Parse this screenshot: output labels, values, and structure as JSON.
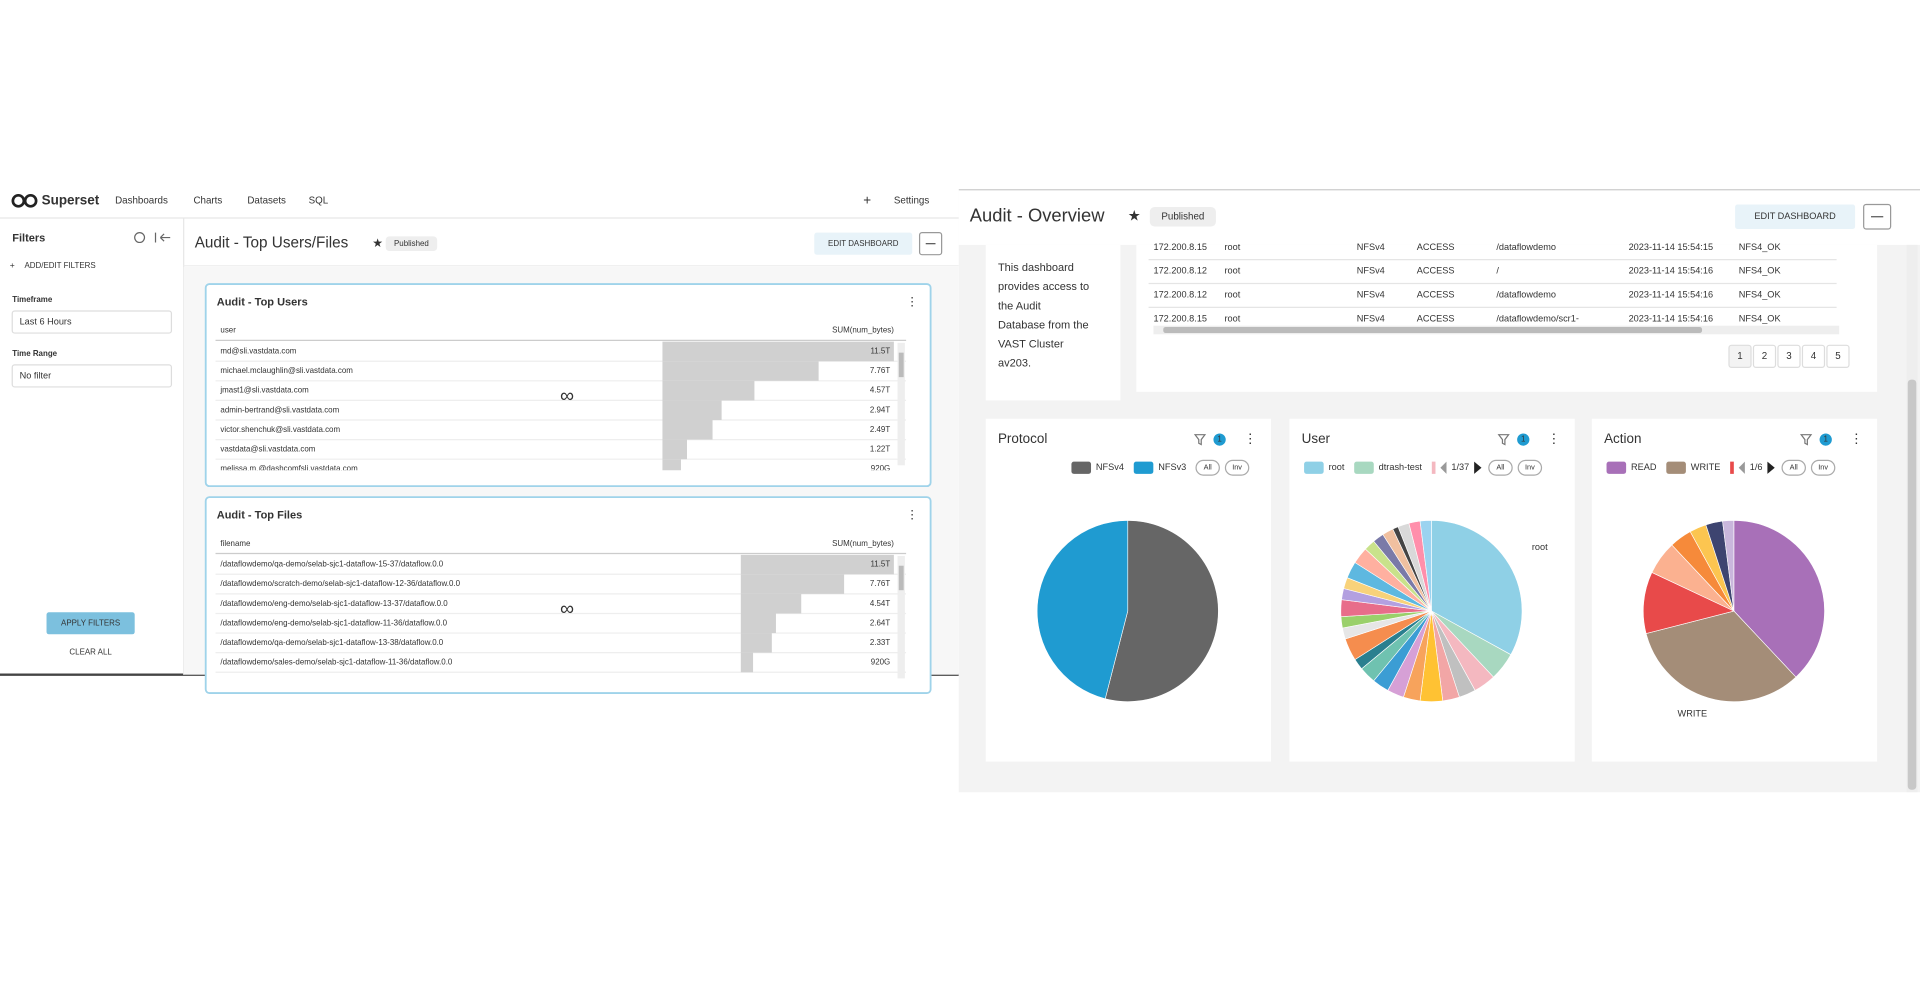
{
  "left": {
    "brand": "Superset",
    "nav": [
      "Dashboards",
      "Charts",
      "Datasets",
      "SQL"
    ],
    "nav_right": [
      "+",
      "Settings"
    ],
    "filters": {
      "title": "Filters",
      "add": "ADD/EDIT FILTERS",
      "fields": [
        {
          "label": "Timeframe",
          "value": "Last 6 Hours"
        },
        {
          "label": "Time Range",
          "value": "No filter"
        }
      ],
      "apply": "APPLY FILTERS",
      "clear": "CLEAR ALL"
    },
    "title": "Audit - Top Users/Files",
    "badge": "Published",
    "edit": "EDIT DASHBOARD",
    "tables": [
      {
        "title": "Audit - Top Users",
        "columns": [
          "user",
          "SUM(num_bytes)"
        ],
        "rows": [
          {
            "name": "md@sli.vastdata.com",
            "value": 11.5,
            "label": "11.5T"
          },
          {
            "name": "michael.mclaughlin@sli.vastdata.com",
            "value": 7.76,
            "label": "7.76T"
          },
          {
            "name": "jmast1@sli.vastdata.com",
            "value": 4.57,
            "label": "4.57T"
          },
          {
            "name": "admin-bertrand@sli.vastdata.com",
            "value": 2.94,
            "label": "2.94T"
          },
          {
            "name": "victor.shenchuk@sli.vastdata.com",
            "value": 2.49,
            "label": "2.49T"
          },
          {
            "name": "vastdata@sli.vastdata.com",
            "value": 1.22,
            "label": "1.22T"
          },
          {
            "name": "melissa.m.@dashcomfsli.vastdata.com",
            "value": 0.92,
            "label": "920G"
          }
        ]
      },
      {
        "title": "Audit - Top Files",
        "columns": [
          "filename",
          "SUM(num_bytes)"
        ],
        "rows": [
          {
            "name": "/dataflowdemo/qa-demo/selab-sjc1-dataflow-15-37/dataflow.0.0",
            "value": 11.5,
            "label": "11.5T"
          },
          {
            "name": "/dataflowdemo/scratch-demo/selab-sjc1-dataflow-12-36/dataflow.0.0",
            "value": 7.76,
            "label": "7.76T"
          },
          {
            "name": "/dataflowdemo/eng-demo/selab-sjc1-dataflow-13-37/dataflow.0.0",
            "value": 4.54,
            "label": "4.54T"
          },
          {
            "name": "/dataflowdemo/eng-demo/selab-sjc1-dataflow-11-36/dataflow.0.0",
            "value": 2.64,
            "label": "2.64T"
          },
          {
            "name": "/dataflowdemo/qa-demo/selab-sjc1-dataflow-13-38/dataflow.0.0",
            "value": 2.33,
            "label": "2.33T"
          },
          {
            "name": "/dataflowdemo/sales-demo/selab-sjc1-dataflow-11-36/dataflow.0.0",
            "value": 0.92,
            "label": "920G"
          }
        ]
      }
    ]
  },
  "right": {
    "title": "Audit - Overview",
    "badge": "Published",
    "edit": "EDIT DASHBOARD",
    "description": [
      "This dashboard",
      "provides access to",
      "the Audit",
      "Database from the",
      "VAST Cluster",
      "av203."
    ],
    "log_rows": [
      [
        "172.200.8.15",
        "root",
        "NFSv4",
        "ACCESS",
        "/dataflowdemo",
        "2023-11-14 15:54:15",
        "NFS4_OK"
      ],
      [
        "172.200.8.12",
        "root",
        "NFSv4",
        "ACCESS",
        "/",
        "2023-11-14 15:54:16",
        "NFS4_OK"
      ],
      [
        "172.200.8.12",
        "root",
        "NFSv4",
        "ACCESS",
        "/dataflowdemo",
        "2023-11-14 15:54:16",
        "NFS4_OK"
      ],
      [
        "172.200.8.15",
        "root",
        "NFSv4",
        "ACCESS",
        "/dataflowdemo/scr1-",
        "2023-11-14 15:54:16",
        "NFS4_OK"
      ]
    ],
    "pages": [
      1,
      2,
      3,
      4,
      5
    ],
    "charts": [
      {
        "type": "pie",
        "title": "Protocol",
        "filter_count": 1,
        "buttons": [
          "All",
          "Inv"
        ],
        "slices": [
          {
            "name": "NFSv4",
            "value": 54,
            "color": "#666666"
          },
          {
            "name": "NFSv3",
            "value": 46,
            "color": "#1f9bd1"
          }
        ]
      },
      {
        "type": "pie",
        "title": "User",
        "filter_count": 1,
        "pager": "1/37",
        "buttons": [
          "All",
          "Inv"
        ],
        "slice_label": "root",
        "slices": [
          {
            "name": "root",
            "value": 33,
            "color": "#8fd0e6"
          },
          {
            "name": "dtrash-test",
            "value": 5,
            "color": "#a8d8c0"
          },
          {
            "value": 4,
            "color": "#f4b8c0"
          },
          {
            "value": 3,
            "color": "#c0c0c0"
          },
          {
            "value": 3,
            "color": "#f2a6a6"
          },
          {
            "value": 4,
            "color": "#ffc233"
          },
          {
            "value": 3,
            "color": "#f7a35c"
          },
          {
            "value": 3,
            "color": "#d6a0d6"
          },
          {
            "value": 3,
            "color": "#3b9dd4"
          },
          {
            "value": 3,
            "color": "#6fc2b0"
          },
          {
            "value": 2,
            "color": "#2a7f8f"
          },
          {
            "value": 4,
            "color": "#f58d4e"
          },
          {
            "value": 2,
            "color": "#e6e6e6"
          },
          {
            "value": 2,
            "color": "#9ad06a"
          },
          {
            "value": 3,
            "color": "#e86d8a"
          },
          {
            "value": 2,
            "color": "#b3a0e0"
          },
          {
            "value": 2,
            "color": "#f8d27a"
          },
          {
            "value": 3,
            "color": "#5eb8e0"
          },
          {
            "value": 3,
            "color": "#ffb0a0"
          },
          {
            "value": 2,
            "color": "#c9e28b"
          },
          {
            "value": 2,
            "color": "#7a7aa8"
          },
          {
            "value": 2,
            "color": "#f0c0a0"
          },
          {
            "value": 1,
            "color": "#444444"
          },
          {
            "value": 2,
            "color": "#d9d9d9"
          },
          {
            "value": 2,
            "color": "#ff8fab"
          },
          {
            "value": 2,
            "color": "#9bd3f0"
          }
        ]
      },
      {
        "type": "pie",
        "title": "Action",
        "filter_count": 1,
        "pager": "1/6",
        "buttons": [
          "All",
          "Inv"
        ],
        "slice_label": "WRITE",
        "slices": [
          {
            "name": "READ",
            "value": 38,
            "color": "#a870b8"
          },
          {
            "name": "WRITE",
            "value": 33,
            "color": "#a48d78"
          },
          {
            "value": 11,
            "color": "#e84a4a"
          },
          {
            "value": 6,
            "color": "#fbb190"
          },
          {
            "value": 4,
            "color": "#f68a3a"
          },
          {
            "value": 3,
            "color": "#fcc550"
          },
          {
            "value": 3,
            "color": "#3d4470"
          },
          {
            "value": 2,
            "color": "#c9b7dc"
          }
        ]
      }
    ]
  }
}
